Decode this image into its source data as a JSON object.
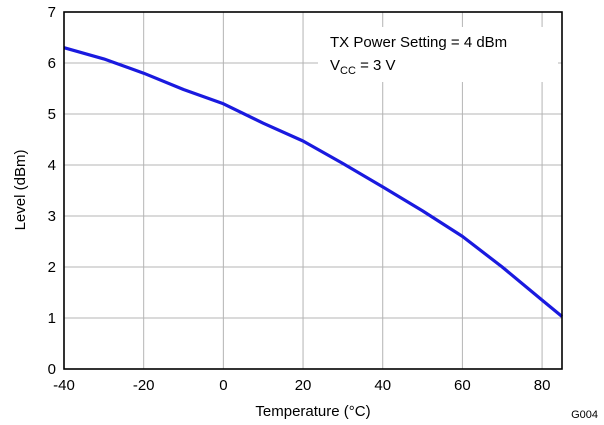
{
  "chart_data": {
    "type": "line",
    "title": "",
    "xlabel": "Temperature (°C)",
    "ylabel": "Level (dBm)",
    "xlim": [
      -40,
      85
    ],
    "ylim": [
      0,
      7
    ],
    "x_ticks": [
      "-40",
      "-20",
      "0",
      "20",
      "40",
      "60",
      "80"
    ],
    "y_ticks": [
      "0",
      "1",
      "2",
      "3",
      "4",
      "5",
      "6",
      "7"
    ],
    "grid": true,
    "series": [
      {
        "color": "#1a1adf",
        "x": [
          -40,
          -30,
          -20,
          -10,
          0,
          10,
          20,
          30,
          40,
          50,
          60,
          70,
          80,
          85
        ],
        "y": [
          6.3,
          6.08,
          5.8,
          5.48,
          5.2,
          4.82,
          4.47,
          4.03,
          3.57,
          3.1,
          2.6,
          2.0,
          1.35,
          1.03
        ]
      }
    ],
    "annotation": {
      "line1": "TX Power Setting = 4 dBm",
      "line2_main": "V",
      "line2_sub": "CC",
      "line2_rest": " = 3 V"
    },
    "figure_id": "G004"
  }
}
